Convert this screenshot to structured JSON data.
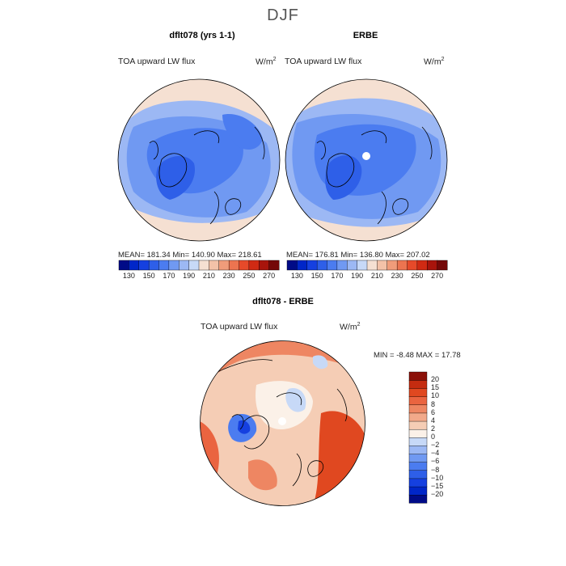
{
  "figure": {
    "title": "DJF"
  },
  "panels": [
    {
      "title": "dflt078 (yrs 1-1)",
      "field_label": "TOA upward LW flux",
      "units_label": "W/m",
      "units_exp": "2",
      "stats": "MEAN= 181.34   Min= 140.90   Max= 218.61"
    },
    {
      "title": "ERBE",
      "field_label": "TOA upward LW flux",
      "units_label": "W/m",
      "units_exp": "2",
      "stats": "MEAN= 176.81   Min= 136.80   Max= 207.02"
    },
    {
      "title": "dflt078 - ERBE",
      "field_label": "TOA upward LW flux",
      "units_label": "W/m",
      "units_exp": "2",
      "stats": "MIN =   -8.48 MAX =   17.78"
    }
  ],
  "colorbar_top": {
    "colors": [
      "#000b87",
      "#0026c8",
      "#1540e0",
      "#2e5fe8",
      "#4b7cf0",
      "#7099f2",
      "#9cb8f4",
      "#c7d9f7",
      "#f5e0d2",
      "#f3c2a8",
      "#f09c7a",
      "#ec7450",
      "#e64a2a",
      "#d02a13",
      "#a8140c",
      "#740808"
    ],
    "tick_labels": [
      "130",
      "150",
      "170",
      "190",
      "210",
      "230",
      "250",
      "270"
    ]
  },
  "colorbar_diff": {
    "colors": [
      "#000b87",
      "#0026c8",
      "#1540e0",
      "#2e5fe8",
      "#4b7cf0",
      "#7099f2",
      "#9cb8f4",
      "#c7d9f7",
      "#fbf1e8",
      "#f5cdb5",
      "#f2a98a",
      "#ee8662",
      "#ea6440",
      "#e04820",
      "#c52c10",
      "#8b1008"
    ],
    "tick_labels": [
      "20",
      "15",
      "10",
      "8",
      "6",
      "4",
      "2",
      "0",
      "−2",
      "−4",
      "−6",
      "−8",
      "−10",
      "−15",
      "−20"
    ]
  }
}
